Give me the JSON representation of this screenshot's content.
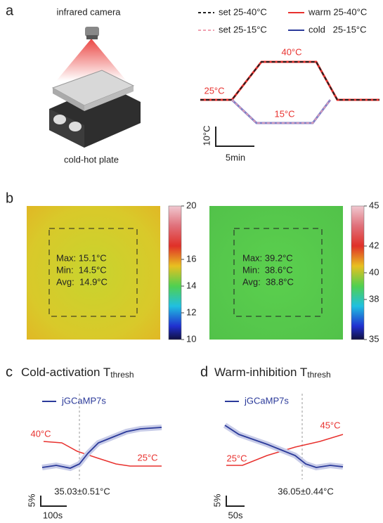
{
  "panel_labels": [
    "a",
    "b",
    "c",
    "d"
  ],
  "panel_a": {
    "camera_label": "infrared camera",
    "plate_label": "cold-hot plate",
    "legend": [
      "set 25-40°C",
      "warm 25-40°C",
      "set 25-15°C",
      "cold   25-15°C"
    ],
    "annotations": [
      "40°C",
      "25°C",
      "15°C"
    ],
    "scale_y": "10°C",
    "scale_x": "5min"
  },
  "panel_b": {
    "images": [
      {
        "stats": [
          "Max: 15.1°C",
          "Min:  14.5°C",
          "Avg:  14.9°C"
        ],
        "clim": [
          10,
          20
        ],
        "ticks": [
          20,
          16,
          14,
          12,
          10
        ]
      },
      {
        "stats": [
          "Max: 39.2°C",
          "Min:  38.6°C",
          "Avg:  38.8°C"
        ],
        "clim": [
          35,
          45
        ],
        "ticks": [
          45,
          42,
          40,
          38,
          35
        ]
      }
    ]
  },
  "panel_c": {
    "title": "Cold-activation T",
    "title_sub": "thresh",
    "legend": "jGCaMP7s",
    "annotations": [
      "40°C",
      "25°C"
    ],
    "threshold": "35.03±0.51°C",
    "scale_y": "5%",
    "scale_x": "100s"
  },
  "panel_d": {
    "title": "Warm-inhibition T",
    "title_sub": "thresh",
    "legend": "jGCaMP7s",
    "annotations": [
      "45°C",
      "25°C"
    ],
    "threshold": "36.05±0.44°C",
    "scale_y": "5%",
    "scale_x": "50s"
  }
}
